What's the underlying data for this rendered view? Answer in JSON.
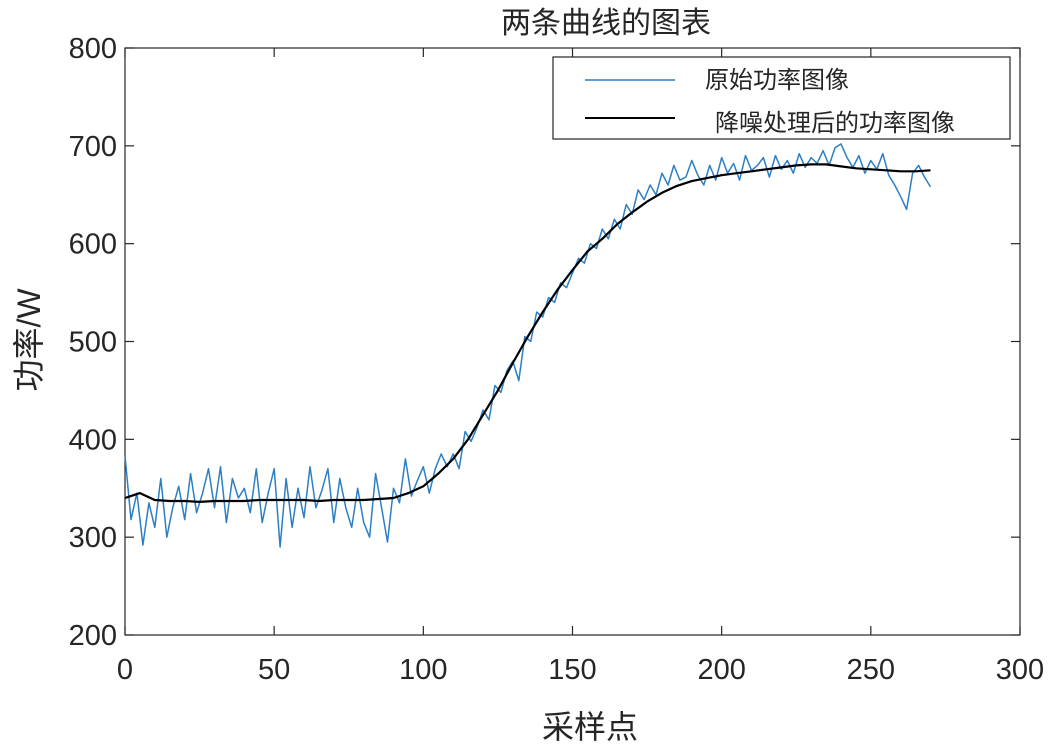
{
  "chart_data": {
    "type": "line",
    "title": "两条曲线的图表",
    "xlabel": "采样点",
    "ylabel": "功率/W",
    "xlim": [
      0,
      300
    ],
    "ylim": [
      200,
      800
    ],
    "xticks": [
      "0",
      "50",
      "100",
      "150",
      "200",
      "250",
      "300"
    ],
    "yticks": [
      "200",
      "300",
      "400",
      "500",
      "600",
      "700",
      "800"
    ],
    "grid": false,
    "legend_position": "top-right",
    "series": [
      {
        "name": "原始功率图像",
        "color": "#2c7fc4",
        "x_start": 0,
        "x_step": 2,
        "values": [
          383,
          318,
          345,
          292,
          335,
          310,
          360,
          300,
          330,
          352,
          318,
          365,
          325,
          345,
          370,
          330,
          372,
          315,
          360,
          340,
          350,
          325,
          370,
          315,
          345,
          370,
          290,
          360,
          310,
          350,
          320,
          372,
          330,
          348,
          370,
          315,
          360,
          330,
          310,
          350,
          315,
          300,
          365,
          330,
          295,
          350,
          335,
          380,
          342,
          358,
          372,
          345,
          370,
          385,
          372,
          385,
          370,
          408,
          398,
          412,
          430,
          420,
          455,
          448,
          470,
          480,
          460,
          505,
          500,
          530,
          525,
          545,
          540,
          560,
          555,
          570,
          585,
          580,
          600,
          595,
          615,
          605,
          625,
          615,
          640,
          630,
          655,
          645,
          660,
          650,
          672,
          660,
          680,
          665,
          668,
          685,
          670,
          660,
          680,
          665,
          688,
          672,
          682,
          665,
          690,
          675,
          680,
          688,
          668,
          690,
          676,
          685,
          672,
          692,
          678,
          688,
          682,
          695,
          680,
          698,
          702,
          688,
          678,
          690,
          672,
          685,
          676,
          692,
          670,
          660,
          648,
          635,
          672,
          680,
          668,
          658
        ]
      },
      {
        "name": "降噪处理后的功率图像",
        "color": "#000000",
        "x_start": 0,
        "x_step": 5,
        "values": [
          340,
          345,
          338,
          337,
          337,
          336,
          337,
          337,
          337,
          338,
          338,
          338,
          338,
          337,
          338,
          338,
          338,
          339,
          340,
          345,
          352,
          365,
          380,
          400,
          425,
          450,
          478,
          505,
          530,
          553,
          573,
          592,
          605,
          620,
          632,
          643,
          652,
          659,
          664,
          667,
          670,
          672,
          674,
          676,
          678,
          680,
          681,
          681,
          679,
          677,
          676,
          675,
          674,
          674,
          675
        ]
      }
    ]
  }
}
